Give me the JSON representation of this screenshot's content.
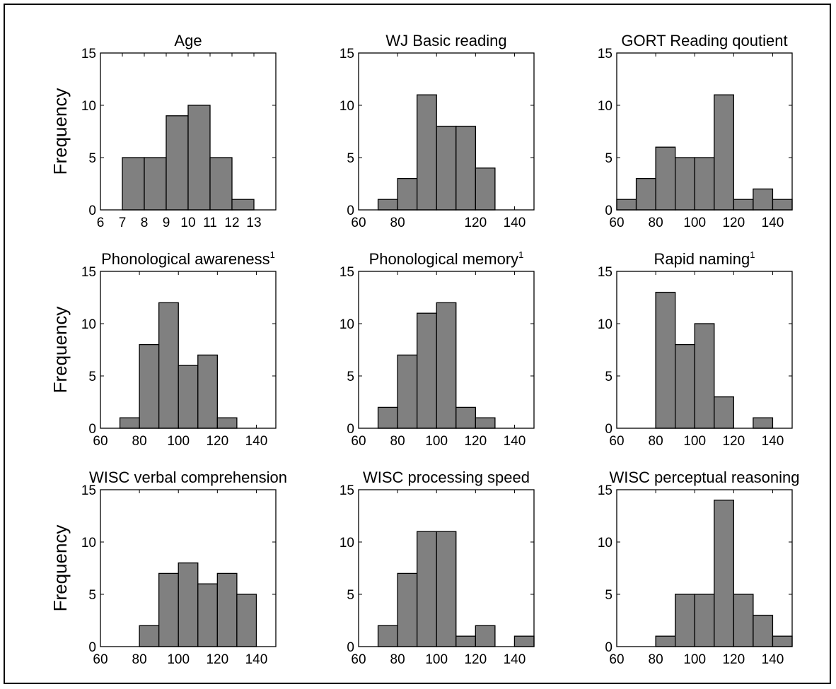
{
  "figure": {
    "ylabel": "Frequency",
    "bar_color": "#808080",
    "edge_color": "#000000"
  },
  "chart_data": [
    {
      "type": "bar",
      "title": "Age",
      "superscript": "",
      "xlabel": "",
      "ylabel": "Frequency",
      "xlim": [
        6,
        14
      ],
      "ylim": [
        0,
        15
      ],
      "xticks": [
        6,
        7,
        8,
        9,
        10,
        11,
        12,
        13
      ],
      "yticks": [
        0,
        5,
        10,
        15
      ],
      "bins": [
        [
          7,
          8
        ],
        [
          8,
          9
        ],
        [
          9,
          10
        ],
        [
          10,
          11
        ],
        [
          11,
          12
        ],
        [
          12,
          13
        ]
      ],
      "values": [
        5,
        5,
        9,
        10,
        5,
        1
      ],
      "grid": false
    },
    {
      "type": "bar",
      "title": "WJ Basic reading",
      "superscript": "",
      "xlabel": "",
      "ylabel": "",
      "xlim": [
        60,
        150
      ],
      "ylim": [
        0,
        15
      ],
      "xticks": [
        60,
        80,
        100,
        120,
        140
      ],
      "xtick_labels": [
        "60",
        "80",
        "",
        "120",
        "140"
      ],
      "yticks": [
        0,
        5,
        10,
        15
      ],
      "bins": [
        [
          70,
          80
        ],
        [
          80,
          90
        ],
        [
          90,
          100
        ],
        [
          100,
          110
        ],
        [
          110,
          120
        ],
        [
          120,
          130
        ]
      ],
      "values": [
        1,
        3,
        11,
        8,
        8,
        4
      ],
      "grid": false
    },
    {
      "type": "bar",
      "title": "GORT Reading qoutient",
      "superscript": "",
      "xlabel": "",
      "ylabel": "",
      "xlim": [
        60,
        150
      ],
      "ylim": [
        0,
        15
      ],
      "xticks": [
        60,
        80,
        100,
        120,
        140
      ],
      "yticks": [
        0,
        5,
        10,
        15
      ],
      "bins": [
        [
          60,
          70
        ],
        [
          70,
          80
        ],
        [
          80,
          90
        ],
        [
          90,
          100
        ],
        [
          100,
          110
        ],
        [
          110,
          120
        ],
        [
          120,
          130
        ],
        [
          130,
          140
        ],
        [
          140,
          150
        ]
      ],
      "values": [
        1,
        3,
        6,
        5,
        5,
        11,
        1,
        2,
        1
      ],
      "grid": false
    },
    {
      "type": "bar",
      "title": "Phonological awareness",
      "superscript": "1",
      "xlabel": "",
      "ylabel": "Frequency",
      "xlim": [
        60,
        150
      ],
      "ylim": [
        0,
        15
      ],
      "xticks": [
        60,
        80,
        100,
        120,
        140
      ],
      "yticks": [
        0,
        5,
        10,
        15
      ],
      "bins": [
        [
          70,
          80
        ],
        [
          80,
          90
        ],
        [
          90,
          100
        ],
        [
          100,
          110
        ],
        [
          110,
          120
        ],
        [
          120,
          130
        ]
      ],
      "values": [
        1,
        8,
        12,
        6,
        7,
        1
      ],
      "grid": false
    },
    {
      "type": "bar",
      "title": "Phonological memory",
      "superscript": "1",
      "xlabel": "",
      "ylabel": "",
      "xlim": [
        60,
        150
      ],
      "ylim": [
        0,
        15
      ],
      "xticks": [
        60,
        80,
        100,
        120,
        140
      ],
      "yticks": [
        0,
        5,
        10,
        15
      ],
      "bins": [
        [
          70,
          80
        ],
        [
          80,
          90
        ],
        [
          90,
          100
        ],
        [
          100,
          110
        ],
        [
          110,
          120
        ],
        [
          120,
          130
        ]
      ],
      "values": [
        2,
        7,
        11,
        12,
        2,
        1
      ],
      "grid": false
    },
    {
      "type": "bar",
      "title": "Rapid naming",
      "superscript": "1",
      "xlabel": "",
      "ylabel": "",
      "xlim": [
        60,
        150
      ],
      "ylim": [
        0,
        15
      ],
      "xticks": [
        60,
        80,
        100,
        120,
        140
      ],
      "yticks": [
        0,
        5,
        10,
        15
      ],
      "bins": [
        [
          80,
          90
        ],
        [
          90,
          100
        ],
        [
          100,
          110
        ],
        [
          110,
          120
        ],
        [
          130,
          140
        ]
      ],
      "values": [
        13,
        8,
        10,
        3,
        1
      ],
      "grid": false
    },
    {
      "type": "bar",
      "title": "WISC verbal comprehension",
      "superscript": "",
      "xlabel": "",
      "ylabel": "Frequency",
      "xlim": [
        60,
        150
      ],
      "ylim": [
        0,
        15
      ],
      "xticks": [
        60,
        80,
        100,
        120,
        140
      ],
      "yticks": [
        0,
        5,
        10,
        15
      ],
      "bins": [
        [
          80,
          90
        ],
        [
          90,
          100
        ],
        [
          100,
          110
        ],
        [
          110,
          120
        ],
        [
          120,
          130
        ],
        [
          130,
          140
        ]
      ],
      "values": [
        2,
        7,
        8,
        6,
        7,
        5
      ],
      "grid": false
    },
    {
      "type": "bar",
      "title": "WISC processing speed",
      "superscript": "",
      "xlabel": "",
      "ylabel": "",
      "xlim": [
        60,
        150
      ],
      "ylim": [
        0,
        15
      ],
      "xticks": [
        60,
        80,
        100,
        120,
        140
      ],
      "yticks": [
        0,
        5,
        10,
        15
      ],
      "bins": [
        [
          70,
          80
        ],
        [
          80,
          90
        ],
        [
          90,
          100
        ],
        [
          100,
          110
        ],
        [
          110,
          120
        ],
        [
          120,
          130
        ],
        [
          140,
          150
        ]
      ],
      "values": [
        2,
        7,
        11,
        11,
        1,
        2,
        1
      ],
      "grid": false
    },
    {
      "type": "bar",
      "title": "WISC perceptual reasoning",
      "superscript": "",
      "xlabel": "",
      "ylabel": "",
      "xlim": [
        60,
        150
      ],
      "ylim": [
        0,
        15
      ],
      "xticks": [
        60,
        80,
        100,
        120,
        140
      ],
      "yticks": [
        0,
        5,
        10,
        15
      ],
      "bins": [
        [
          80,
          90
        ],
        [
          90,
          100
        ],
        [
          100,
          110
        ],
        [
          110,
          120
        ],
        [
          120,
          130
        ],
        [
          130,
          140
        ],
        [
          140,
          150
        ]
      ],
      "values": [
        1,
        5,
        5,
        14,
        5,
        3,
        1
      ],
      "grid": false
    }
  ]
}
